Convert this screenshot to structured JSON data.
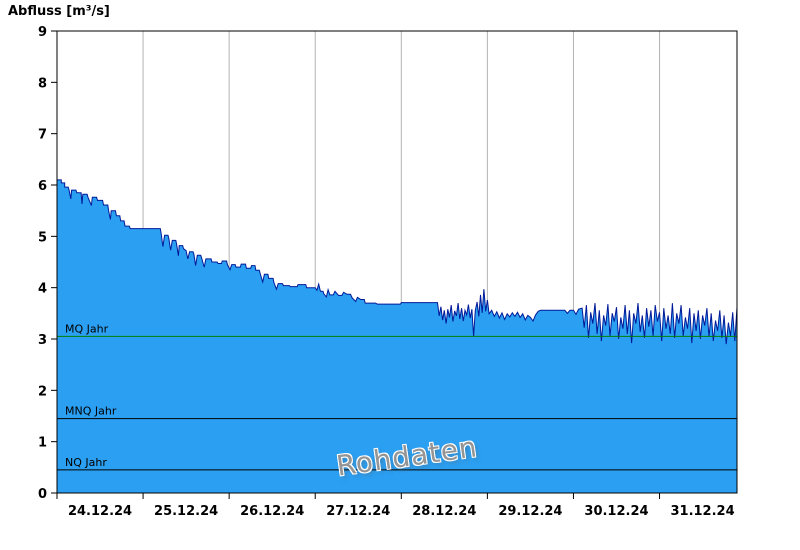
{
  "chart_data": {
    "type": "area",
    "title": "Abfluss [m³/s]",
    "watermark": "Rohdaten",
    "ylabel": "Abfluss [m³/s]",
    "xlabel": "",
    "x_unit": "days",
    "xlim": [
      0,
      7.9
    ],
    "ylim": [
      0,
      9
    ],
    "y_ticks": [
      0,
      1,
      2,
      3,
      4,
      5,
      6,
      7,
      8,
      9
    ],
    "x_gridlines": [
      1,
      2,
      3,
      4,
      5,
      6,
      7
    ],
    "x_ticks": [
      0,
      1,
      2,
      3,
      4,
      5,
      6,
      7
    ],
    "x_labels": [
      "24.12.24",
      "25.12.24",
      "26.12.24",
      "27.12.24",
      "28.12.24",
      "29.12.24",
      "30.12.24",
      "31.12.24"
    ],
    "reference_lines": [
      {
        "label": "MQ Jahr",
        "value": 3.05,
        "color": "#007f00"
      },
      {
        "label": "MNQ Jahr",
        "value": 1.45,
        "color": "#000000"
      },
      {
        "label": "NQ Jahr",
        "value": 0.45,
        "color": "#000000"
      }
    ],
    "colors": {
      "fill": "#2b9ff2",
      "line": "#001a99",
      "grid": "#b3b3b3",
      "frame": "#000000",
      "watermark": "#959595"
    },
    "series": [
      {
        "name": "Abfluss Rohdaten",
        "points": [
          [
            0,
            6.1
          ],
          [
            0.05,
            6.1
          ],
          [
            0.05,
            6.04
          ],
          [
            0.09,
            6.04
          ],
          [
            0.09,
            5.96
          ],
          [
            0.13,
            5.96
          ],
          [
            0.14,
            5.9
          ],
          [
            0.16,
            5.73
          ],
          [
            0.17,
            5.9
          ],
          [
            0.22,
            5.9
          ],
          [
            0.23,
            5.85
          ],
          [
            0.28,
            5.85
          ],
          [
            0.29,
            5.63
          ],
          [
            0.3,
            5.82
          ],
          [
            0.35,
            5.82
          ],
          [
            0.36,
            5.76
          ],
          [
            0.4,
            5.6
          ],
          [
            0.41,
            5.76
          ],
          [
            0.46,
            5.76
          ],
          [
            0.47,
            5.7
          ],
          [
            0.53,
            5.7
          ],
          [
            0.54,
            5.61
          ],
          [
            0.59,
            5.61
          ],
          [
            0.6,
            5.5
          ],
          [
            0.62,
            5.33
          ],
          [
            0.63,
            5.5
          ],
          [
            0.68,
            5.5
          ],
          [
            0.69,
            5.4
          ],
          [
            0.73,
            5.4
          ],
          [
            0.74,
            5.3
          ],
          [
            0.78,
            5.3
          ],
          [
            0.79,
            5.2
          ],
          [
            0.84,
            5.2
          ],
          [
            0.85,
            5.15
          ],
          [
            1.2,
            5.15
          ],
          [
            1.21,
            5.05
          ],
          [
            1.23,
            4.8
          ],
          [
            1.25,
            5.02
          ],
          [
            1.29,
            5.02
          ],
          [
            1.3,
            4.95
          ],
          [
            1.32,
            4.73
          ],
          [
            1.34,
            4.92
          ],
          [
            1.38,
            4.92
          ],
          [
            1.39,
            4.85
          ],
          [
            1.41,
            4.62
          ],
          [
            1.42,
            4.82
          ],
          [
            1.46,
            4.82
          ],
          [
            1.47,
            4.76
          ],
          [
            1.5,
            4.72
          ],
          [
            1.52,
            4.56
          ],
          [
            1.54,
            4.7
          ],
          [
            1.58,
            4.7
          ],
          [
            1.59,
            4.65
          ],
          [
            1.61,
            4.43
          ],
          [
            1.63,
            4.63
          ],
          [
            1.67,
            4.63
          ],
          [
            1.68,
            4.58
          ],
          [
            1.71,
            4.4
          ],
          [
            1.73,
            4.56
          ],
          [
            1.79,
            4.56
          ],
          [
            1.8,
            4.5
          ],
          [
            1.86,
            4.5
          ],
          [
            1.87,
            4.47
          ],
          [
            1.91,
            4.47
          ],
          [
            1.92,
            4.52
          ],
          [
            1.97,
            4.52
          ],
          [
            1.98,
            4.45
          ],
          [
            2.01,
            4.35
          ],
          [
            2.03,
            4.45
          ],
          [
            2.07,
            4.45
          ],
          [
            2.08,
            4.4
          ],
          [
            2.13,
            4.4
          ],
          [
            2.14,
            4.46
          ],
          [
            2.19,
            4.46
          ],
          [
            2.2,
            4.38
          ],
          [
            2.25,
            4.38
          ],
          [
            2.26,
            4.43
          ],
          [
            2.3,
            4.43
          ],
          [
            2.31,
            4.34
          ],
          [
            2.35,
            4.34
          ],
          [
            2.36,
            4.28
          ],
          [
            2.39,
            4.11
          ],
          [
            2.41,
            4.26
          ],
          [
            2.45,
            4.26
          ],
          [
            2.46,
            4.18
          ],
          [
            2.51,
            4.18
          ],
          [
            2.52,
            4.1
          ],
          [
            2.55,
            3.97
          ],
          [
            2.57,
            4.08
          ],
          [
            2.62,
            4.08
          ],
          [
            2.63,
            4.04
          ],
          [
            2.7,
            4.04
          ],
          [
            2.71,
            4.02
          ],
          [
            2.79,
            4.02
          ],
          [
            2.8,
            4.06
          ],
          [
            2.89,
            4.06
          ],
          [
            2.9,
            4
          ],
          [
            3,
            4
          ],
          [
            3.02,
            3.95
          ],
          [
            3.04,
            4.07
          ],
          [
            3.06,
            3.93
          ],
          [
            3.09,
            3.93
          ],
          [
            3.1,
            3.88
          ],
          [
            3.13,
            3.82
          ],
          [
            3.15,
            3.96
          ],
          [
            3.17,
            3.86
          ],
          [
            3.21,
            3.86
          ],
          [
            3.23,
            3.93
          ],
          [
            3.27,
            3.85
          ],
          [
            3.31,
            3.85
          ],
          [
            3.33,
            3.91
          ],
          [
            3.37,
            3.87
          ],
          [
            3.41,
            3.87
          ],
          [
            3.43,
            3.8
          ],
          [
            3.47,
            3.73
          ],
          [
            3.49,
            3.81
          ],
          [
            3.53,
            3.77
          ],
          [
            3.57,
            3.77
          ],
          [
            3.58,
            3.7
          ],
          [
            3.7,
            3.7
          ],
          [
            3.72,
            3.68
          ],
          [
            3.99,
            3.68
          ],
          [
            4,
            3.71
          ],
          [
            4.42,
            3.71
          ],
          [
            4.44,
            3.45
          ],
          [
            4.46,
            3.63
          ],
          [
            4.48,
            3.37
          ],
          [
            4.5,
            3.56
          ],
          [
            4.52,
            3.3
          ],
          [
            4.54,
            3.58
          ],
          [
            4.56,
            3.42
          ],
          [
            4.58,
            3.66
          ],
          [
            4.6,
            3.34
          ],
          [
            4.62,
            3.55
          ],
          [
            4.64,
            3.45
          ],
          [
            4.66,
            3.7
          ],
          [
            4.68,
            3.39
          ],
          [
            4.7,
            3.6
          ],
          [
            4.72,
            3.35
          ],
          [
            4.74,
            3.56
          ],
          [
            4.76,
            3.47
          ],
          [
            4.78,
            3.67
          ],
          [
            4.8,
            3.41
          ],
          [
            4.82,
            3.58
          ],
          [
            4.84,
            3.05
          ],
          [
            4.86,
            3.56
          ],
          [
            4.88,
            3.72
          ],
          [
            4.9,
            3.44
          ],
          [
            4.92,
            3.86
          ],
          [
            4.94,
            3.51
          ],
          [
            4.96,
            3.97
          ],
          [
            4.98,
            3.54
          ],
          [
            5,
            3.76
          ],
          [
            5.02,
            3.49
          ],
          [
            5.05,
            3.56
          ],
          [
            5.08,
            3.44
          ],
          [
            5.11,
            3.53
          ],
          [
            5.14,
            3.41
          ],
          [
            5.17,
            3.51
          ],
          [
            5.2,
            3.38
          ],
          [
            5.23,
            3.49
          ],
          [
            5.26,
            3.43
          ],
          [
            5.29,
            3.51
          ],
          [
            5.32,
            3.44
          ],
          [
            5.35,
            3.52
          ],
          [
            5.38,
            3.42
          ],
          [
            5.41,
            3.49
          ],
          [
            5.44,
            3.37
          ],
          [
            5.47,
            3.46
          ],
          [
            5.5,
            3.42
          ],
          [
            5.53,
            3.35
          ],
          [
            5.56,
            3.47
          ],
          [
            5.59,
            3.54
          ],
          [
            5.62,
            3.56
          ],
          [
            5.9,
            3.56
          ],
          [
            5.93,
            3.5
          ],
          [
            5.96,
            3.56
          ],
          [
            6,
            3.56
          ],
          [
            6.03,
            3.48
          ],
          [
            6.06,
            3.58
          ],
          [
            6.1,
            3.6
          ]
        ],
        "noise_tail": {
          "x0": 6.125,
          "dx": 0.025,
          "values": [
            3.22,
            3.66,
            3.02,
            3.52,
            3.3,
            3.7,
            3.1,
            3.56,
            2.96,
            3.46,
            3.26,
            3.68,
            3.06,
            3.5,
            3.34,
            3.62,
            3,
            3.42,
            3.2,
            3.66,
            3.1,
            3.56,
            2.92,
            3.5,
            3.3,
            3.7,
            3.14,
            3.46,
            3.02,
            3.6,
            3.24,
            3.56,
            3.06,
            3.66,
            3.34,
            3.52,
            2.96,
            3.6,
            3.2,
            3.46,
            3.1,
            3.7,
            3.02,
            3.5,
            3.3,
            3.66,
            3.06,
            3.42,
            3.2,
            3.6,
            2.92,
            3.5,
            3.16,
            3.56,
            3,
            3.46,
            3.26,
            3.6,
            3.04,
            3.5,
            2.96,
            3.36,
            3.16,
            3.56,
            3.02,
            3.46,
            2.9,
            3.32,
            3.06,
            3.52,
            2.96,
            3.62
          ]
        }
      }
    ]
  }
}
